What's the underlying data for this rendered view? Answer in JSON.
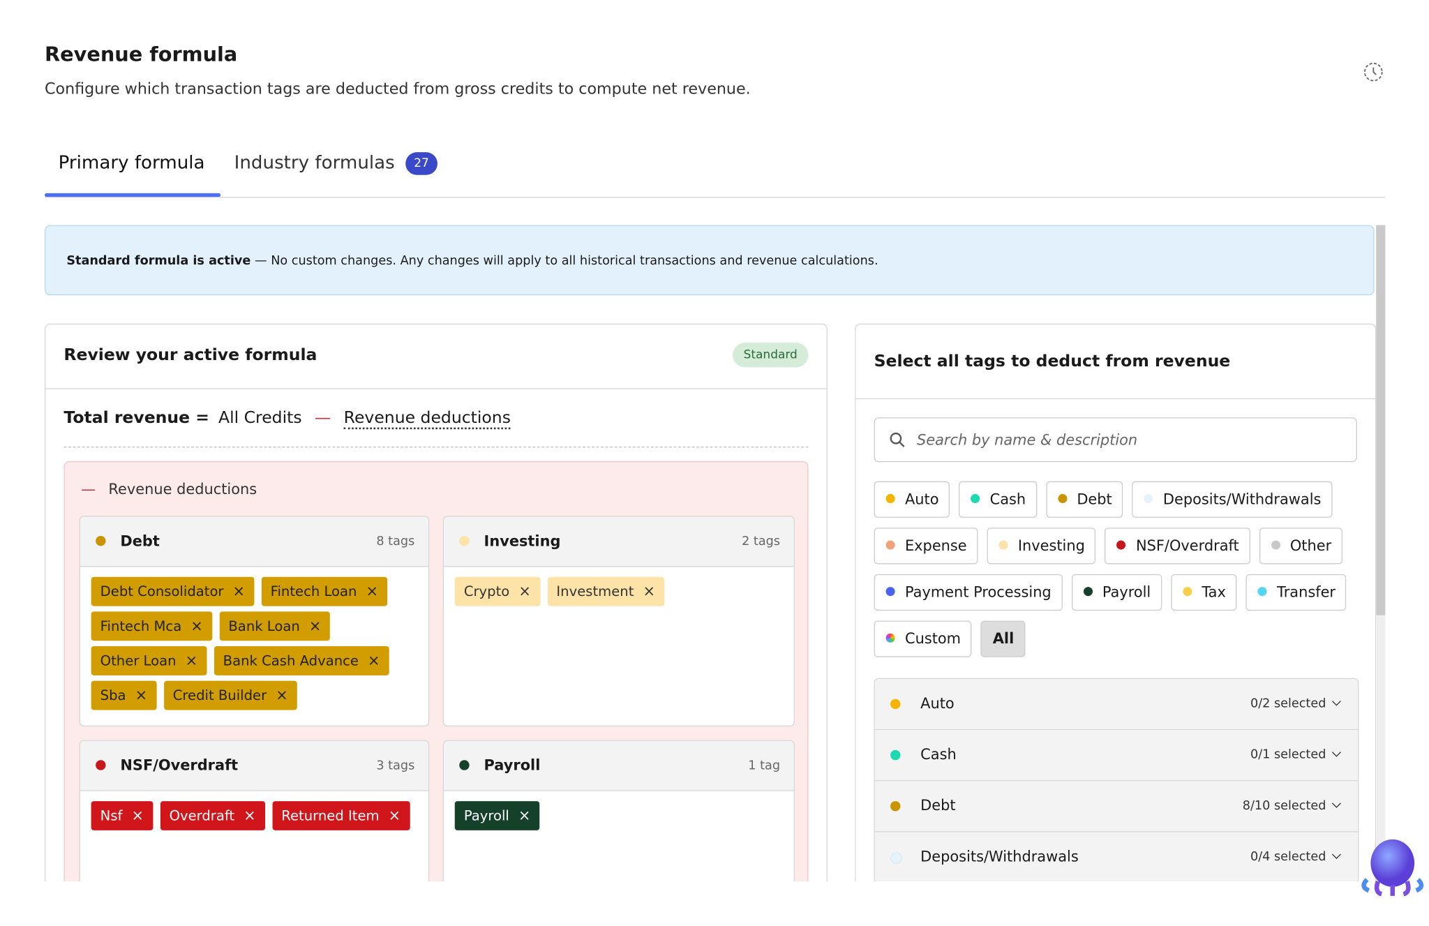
{
  "header": {
    "title": "Revenue formula",
    "subtitle": "Configure which transaction tags are deducted from gross credits to compute net revenue."
  },
  "tabs": [
    {
      "label": "Primary formula"
    },
    {
      "label": "Industry formulas",
      "badge": "27"
    }
  ],
  "banner": {
    "strong": "Standard formula is active",
    "text": " — No custom changes. Any changes will apply to all historical transactions and revenue calculations."
  },
  "review": {
    "title": "Review your active formula",
    "badge": "Standard",
    "formula": {
      "lhs": "Total revenue =",
      "term1": "All Credits",
      "op": "—",
      "term2": "Revenue deductions"
    },
    "section": {
      "icon": "—",
      "label": "Revenue deductions"
    },
    "groups": [
      {
        "name": "Debt",
        "count": "8 tags",
        "color": "#c99400",
        "tag_bg": "#d19d00",
        "tag_text": "#222",
        "tags": [
          "Debt Consolidator",
          "Fintech Loan",
          "Fintech Mca",
          "Bank Loan",
          "Other Loan",
          "Bank Cash Advance",
          "Sba",
          "Credit Builder"
        ]
      },
      {
        "name": "Investing",
        "count": "2 tags",
        "color": "#fde3a7",
        "tag_bg": "#fde3a7",
        "tag_text": "#333",
        "tags": [
          "Crypto",
          "Investment"
        ]
      },
      {
        "name": "NSF/Overdraft",
        "count": "3 tags",
        "color": "#c8161d",
        "tag_bg": "#d0161b",
        "tag_text": "#fff",
        "tags": [
          "Nsf",
          "Overdraft",
          "Returned Item"
        ]
      },
      {
        "name": "Payroll",
        "count": "1 tag",
        "color": "#15402a",
        "tag_bg": "#15402a",
        "tag_text": "#fff",
        "tags": [
          "Payroll"
        ]
      }
    ]
  },
  "select": {
    "title": "Select all tags to deduct from revenue",
    "search_placeholder": "Search by name & description",
    "filters": [
      {
        "name": "Auto",
        "color": "#f5b400"
      },
      {
        "name": "Cash",
        "color": "#1ed9b0"
      },
      {
        "name": "Debt",
        "color": "#c99400"
      },
      {
        "name": "Deposits/Withdrawals",
        "color": "#e6f3fb"
      },
      {
        "name": "Expense",
        "color": "#f2a27a"
      },
      {
        "name": "Investing",
        "color": "#fde3a7"
      },
      {
        "name": "NSF/Overdraft",
        "color": "#c8161d"
      },
      {
        "name": "Other",
        "color": "#c8c8c8"
      },
      {
        "name": "Payment Processing",
        "color": "#4a63f0"
      },
      {
        "name": "Payroll",
        "color": "#15402a"
      },
      {
        "name": "Tax",
        "color": "#f7d04a"
      },
      {
        "name": "Transfer",
        "color": "#55d5f5"
      },
      {
        "name": "Custom",
        "color": "conic-gradient(#f44,#fb0,#4c4,#4af,#a4f,#f44)"
      },
      {
        "name": "All",
        "color": null,
        "selected": true
      }
    ],
    "list": [
      {
        "name": "Auto",
        "color": "#f5b400",
        "status": "0/2 selected"
      },
      {
        "name": "Cash",
        "color": "#1ed9b0",
        "status": "0/1 selected"
      },
      {
        "name": "Debt",
        "color": "#c99400",
        "status": "8/10 selected"
      },
      {
        "name": "Deposits/Withdrawals",
        "color": "#e6f3fb",
        "status": "0/4 selected"
      }
    ]
  }
}
